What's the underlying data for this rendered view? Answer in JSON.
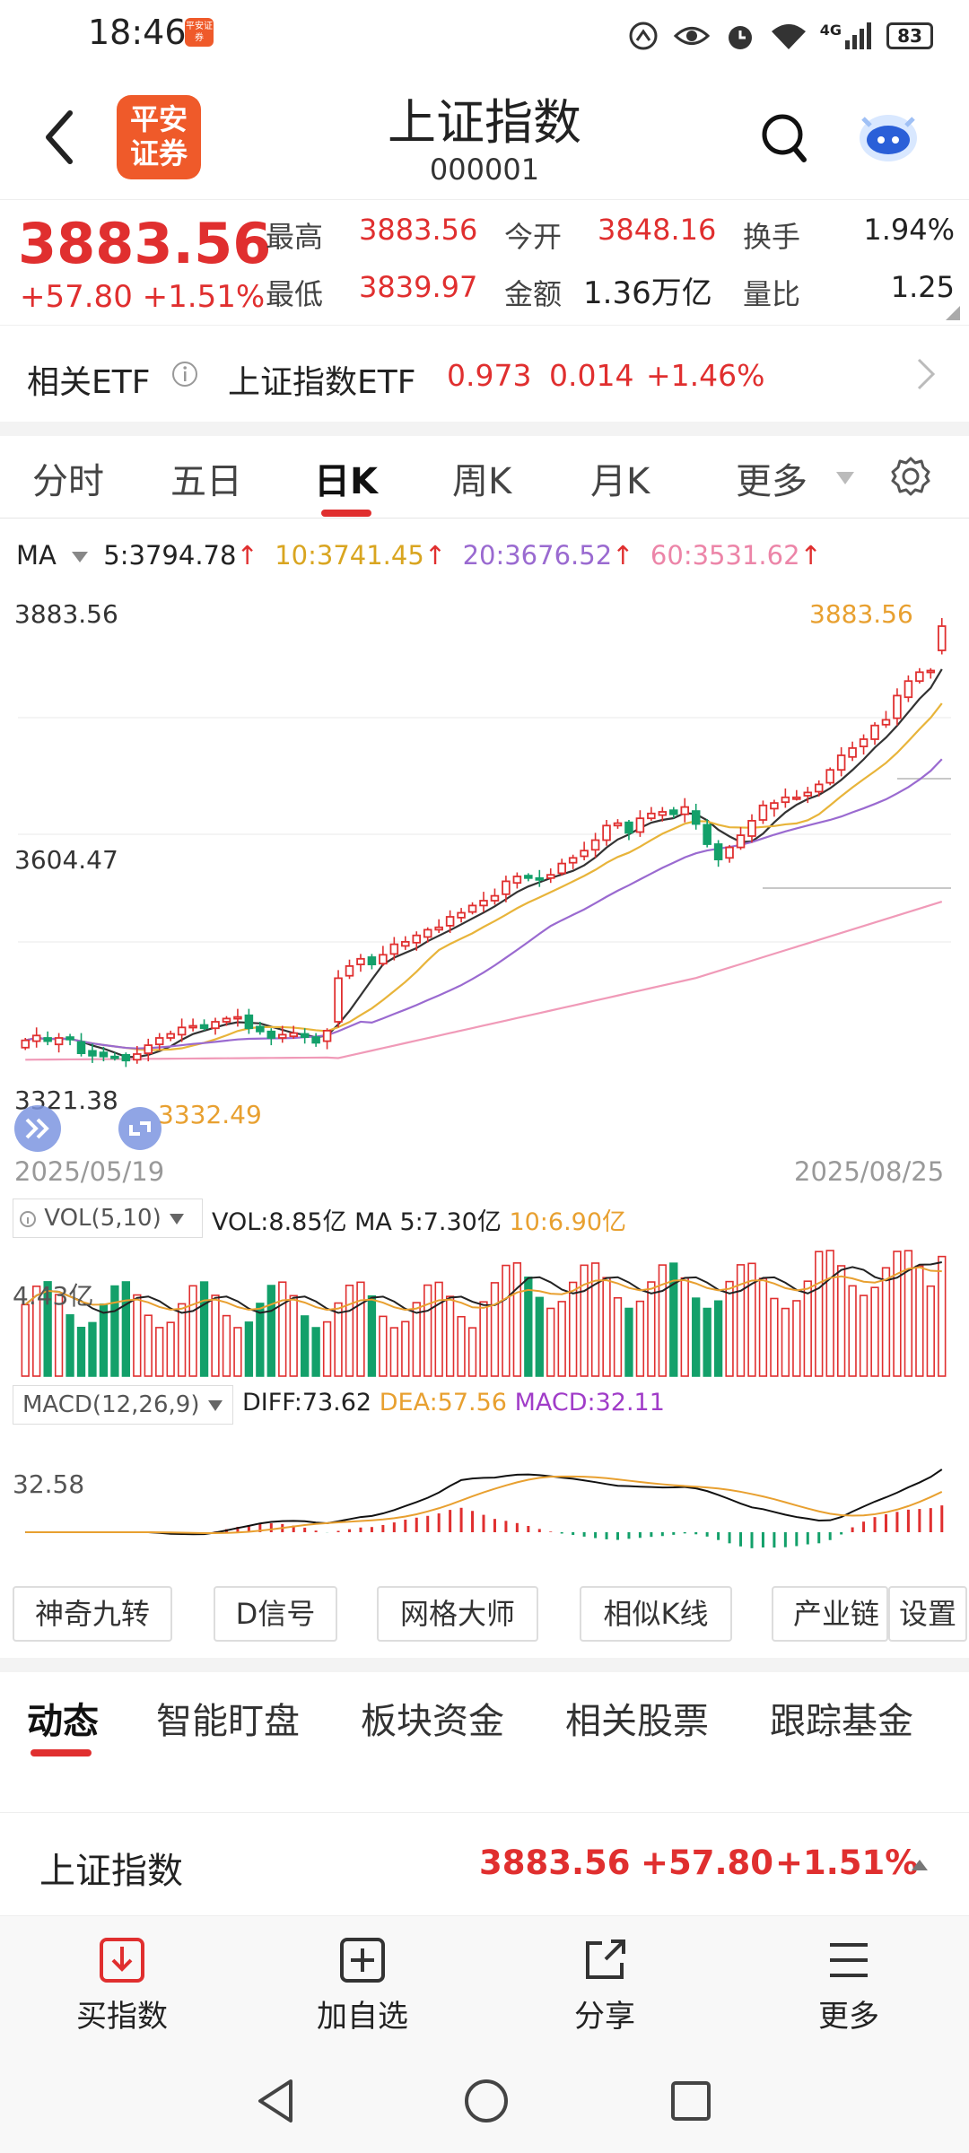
{
  "status_bar": {
    "time": "18:46",
    "app_icon_text": "平安证券",
    "signal": "4G",
    "battery": "83"
  },
  "header": {
    "logo_line1": "平安",
    "logo_line2": "证券",
    "title": "上证指数",
    "code": "000001"
  },
  "quote": {
    "price": "3883.56",
    "change": "+57.80",
    "change_pct": "+1.51%",
    "high_label": "最高",
    "high": "3883.56",
    "low_label": "最低",
    "low": "3839.97",
    "open_label": "今开",
    "open": "3848.16",
    "amount_label": "金额",
    "amount": "1.36万亿",
    "turnover_label": "换手",
    "turnover": "1.94%",
    "volume_ratio_label": "量比",
    "volume_ratio": "1.25"
  },
  "etf": {
    "label": "相关ETF",
    "name": "上证指数ETF",
    "price": "0.973",
    "change": "0.014",
    "change_pct": "+1.46%"
  },
  "tabs": {
    "items": [
      "分时",
      "五日",
      "日K",
      "周K",
      "月K",
      "更多"
    ],
    "active": "日K"
  },
  "ma": {
    "label": "MA",
    "ma5": "5:3794.78",
    "ma10": "10:3741.45",
    "ma20": "20:3676.52",
    "ma60": "60:3531.62"
  },
  "colors": {
    "up": "#e02f2f",
    "down": "#13a06a",
    "ma5": "#333333",
    "ma10": "#e8b43a",
    "ma20": "#9a6ad0",
    "ma60": "#f09ab8"
  },
  "chart_data": {
    "type": "candlestick",
    "y_labels": {
      "top": "3883.56",
      "mid": "3604.47",
      "low": "3321.38"
    },
    "max_marker": "3883.56",
    "min_marker": "3332.49",
    "start_date": "2025/05/19",
    "end_date": "2025/08/25",
    "ylim": [
      3300,
      3900
    ],
    "close": [
      3367,
      3373,
      3366,
      3370,
      3368,
      3351,
      3348,
      3347,
      3345,
      3342,
      3350,
      3361,
      3370,
      3375,
      3383,
      3385,
      3382,
      3390,
      3394,
      3396,
      3382,
      3378,
      3370,
      3374,
      3376,
      3371,
      3364,
      3379,
      3444,
      3459,
      3468,
      3461,
      3473,
      3486,
      3489,
      3497,
      3504,
      3507,
      3520,
      3525,
      3534,
      3540,
      3546,
      3564,
      3570,
      3568,
      3566,
      3572,
      3586,
      3593,
      3602,
      3615,
      3633,
      3636,
      3624,
      3642,
      3648,
      3650,
      3647,
      3656,
      3635,
      3610,
      3591,
      3606,
      3621,
      3639,
      3658,
      3661,
      3668,
      3668,
      3674,
      3684,
      3702,
      3720,
      3729,
      3740,
      3757,
      3764,
      3794,
      3812,
      3823,
      3825,
      3880
    ],
    "open": [
      3358,
      3366,
      3370,
      3362,
      3371,
      3365,
      3354,
      3352,
      3347,
      3349,
      3343,
      3351,
      3362,
      3370,
      3374,
      3384,
      3386,
      3382,
      3390,
      3394,
      3398,
      3384,
      3378,
      3370,
      3372,
      3375,
      3371,
      3366,
      3390,
      3447,
      3461,
      3470,
      3462,
      3474,
      3484,
      3488,
      3495,
      3504,
      3509,
      3519,
      3526,
      3534,
      3540,
      3548,
      3562,
      3571,
      3568,
      3568,
      3574,
      3587,
      3595,
      3603,
      3615,
      3633,
      3637,
      3625,
      3642,
      3646,
      3652,
      3647,
      3651,
      3634,
      3610,
      3593,
      3606,
      3620,
      3640,
      3654,
      3662,
      3668,
      3670,
      3675,
      3686,
      3702,
      3718,
      3731,
      3740,
      3758,
      3766,
      3792,
      3812,
      3823,
      3850
    ],
    "volume_label": "VOL(5,10)",
    "volume_value": "VOL:8.85亿",
    "volume_ma5": "MA 5:7.30亿",
    "volume_ma10": "10:6.90亿",
    "volume_y": "4.43亿",
    "macd_label": "MACD(12,26,9)",
    "diff": "DIFF:73.62",
    "dea": "DEA:57.56",
    "macd": "MACD:32.11",
    "macd_y": "32.58"
  },
  "tool_buttons": [
    "神奇九转",
    "D信号",
    "网格大师",
    "相似K线",
    "产业链",
    "设置"
  ],
  "bottom_tabs": {
    "items": [
      "动态",
      "智能盯盘",
      "板块资金",
      "相关股票",
      "跟踪基金"
    ],
    "active": "动态"
  },
  "index_row": {
    "name": "上证指数",
    "price": "3883.56",
    "change": "+57.80",
    "change_pct": "+1.51%"
  },
  "bottom_nav": {
    "buy": "买指数",
    "add": "加自选",
    "share": "分享",
    "more": "更多"
  }
}
